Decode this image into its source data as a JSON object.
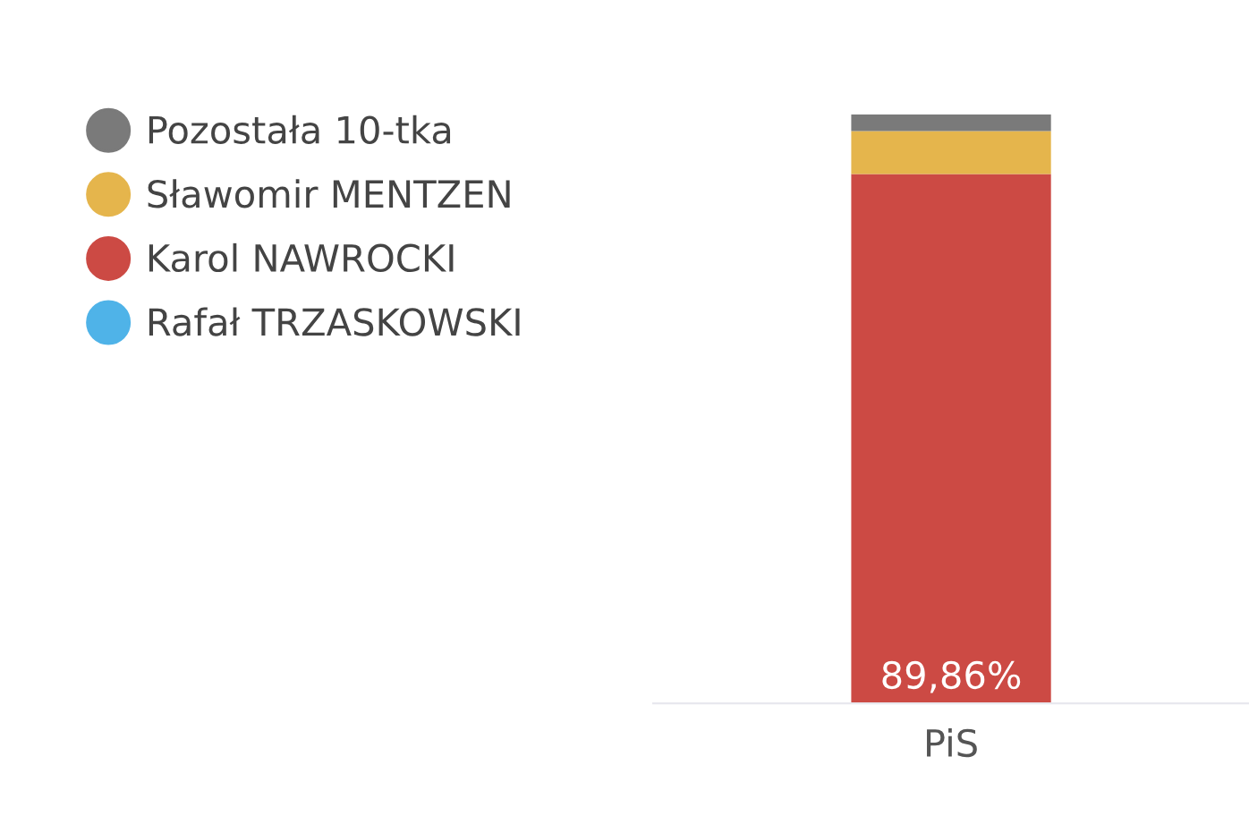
{
  "chart_data": {
    "type": "bar",
    "stacked": true,
    "categories": [
      "PiS"
    ],
    "legend": "left",
    "grid": false,
    "series": [
      {
        "name": "Rafał TRZASKOWSKI",
        "color": "#4fb3e8",
        "values": [
          0
        ]
      },
      {
        "name": "Karol NAWROCKI",
        "color": "#cc4a44",
        "values": [
          89.86
        ],
        "value_labels": [
          "89,86%"
        ]
      },
      {
        "name": "Sławomir MENTZEN",
        "color": "#e5b54c",
        "values": [
          7.3
        ]
      },
      {
        "name": "Pozostała 10-tka",
        "color": "#7a7a7a",
        "values": [
          2.84
        ]
      }
    ]
  }
}
